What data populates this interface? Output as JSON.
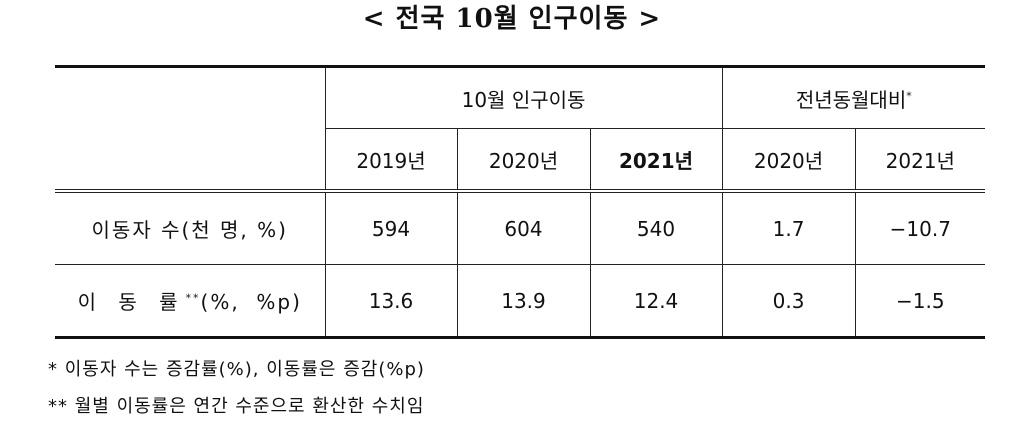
{
  "title": "< 전국 10월 인구이동 >",
  "table": {
    "group_headers": [
      {
        "label": "10월 인구이동"
      },
      {
        "label": "전년동월대비",
        "mark": "*"
      }
    ],
    "year_headers": [
      "2019년",
      "2020년",
      "2021년",
      "2020년",
      "2021년"
    ],
    "rows": [
      {
        "label": "이동자 수(천 명, %)",
        "cells": [
          "594",
          "604",
          "540",
          "1.7",
          "−10.7"
        ]
      },
      {
        "label": "이 동 률",
        "mark": "**",
        "label_suffix": "(%,  %p)",
        "cells": [
          "13.6",
          "13.9",
          "12.4",
          "0.3",
          "−1.5"
        ]
      }
    ]
  },
  "footnotes": [
    "* 이동자 수는 증감률(%), 이동률은 증감(%p)",
    "** 월별 이동률은 연간 수준으로 환산한 수치임"
  ]
}
